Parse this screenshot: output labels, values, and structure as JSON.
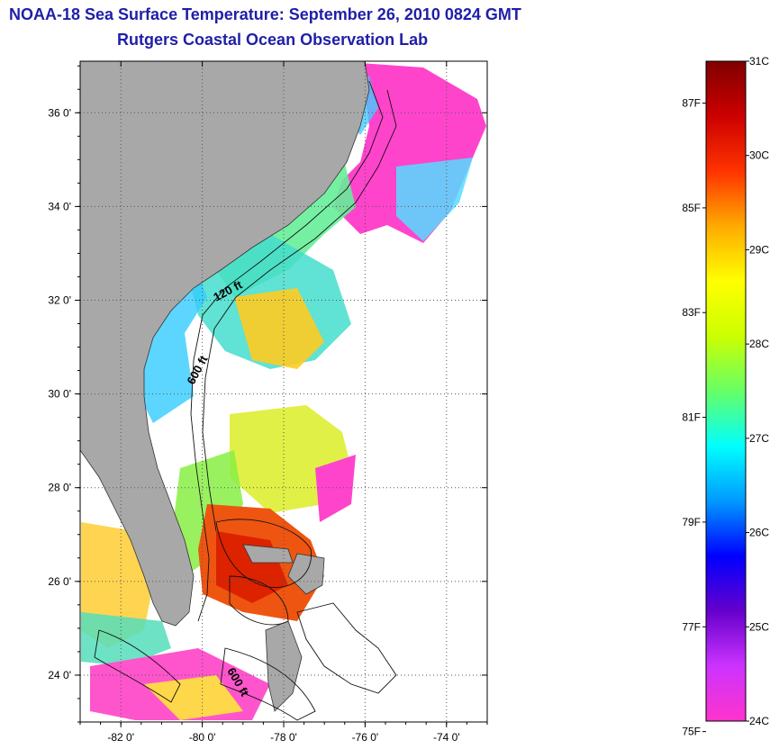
{
  "title_line1": "NOAA-18 Sea Surface Temperature:  September 26, 2010 0824 GMT",
  "title_line2": "Rutgers Coastal Ocean Observation Lab",
  "map": {
    "lon_range": [
      -83,
      -73
    ],
    "lat_range": [
      23,
      37.1
    ],
    "lon_ticks": [
      {
        "value": -82,
        "label": "-82 0'"
      },
      {
        "value": -80,
        "label": "-80 0'"
      },
      {
        "value": -78,
        "label": "-78 0'"
      },
      {
        "value": -76,
        "label": "-76 0'"
      },
      {
        "value": -74,
        "label": "-74 0'"
      }
    ],
    "lat_ticks": [
      {
        "value": 24,
        "label": "24 0'"
      },
      {
        "value": 26,
        "label": "26 0'"
      },
      {
        "value": 28,
        "label": "28 0'"
      },
      {
        "value": 30,
        "label": "30 0'"
      },
      {
        "value": 32,
        "label": "32 0'"
      },
      {
        "value": 34,
        "label": "34 0'"
      },
      {
        "value": 36,
        "label": "36 0'"
      }
    ],
    "contour_labels": [
      "120 ft",
      "600 ft",
      "600 ft"
    ],
    "colors": {
      "land": "#a8a8a8",
      "gridline": "#555555"
    }
  },
  "colorbar": {
    "celsius_labels": [
      {
        "value": 31,
        "label": "31C"
      },
      {
        "value": 30,
        "label": "30C"
      },
      {
        "value": 29,
        "label": "29C"
      },
      {
        "value": 28,
        "label": "28C"
      },
      {
        "value": 27,
        "label": "27C"
      },
      {
        "value": 26,
        "label": "26C"
      },
      {
        "value": 25,
        "label": "25C"
      },
      {
        "value": 24,
        "label": "24C"
      }
    ],
    "fahrenheit_labels": [
      {
        "value": 87,
        "label": "87F"
      },
      {
        "value": 85,
        "label": "85F"
      },
      {
        "value": 83,
        "label": "83F"
      },
      {
        "value": 81,
        "label": "81F"
      },
      {
        "value": 79,
        "label": "79F"
      },
      {
        "value": 77,
        "label": "77F"
      },
      {
        "value": 75,
        "label": "75F"
      }
    ],
    "range_c": [
      24,
      31
    ],
    "gradient_stops": [
      "#ff33cc",
      "#cc33ff",
      "#6600cc",
      "#0000ff",
      "#0099ff",
      "#00ffff",
      "#66ff66",
      "#ccff00",
      "#ffff00",
      "#ffaa00",
      "#ff3300",
      "#cc0000",
      "#800000"
    ]
  }
}
